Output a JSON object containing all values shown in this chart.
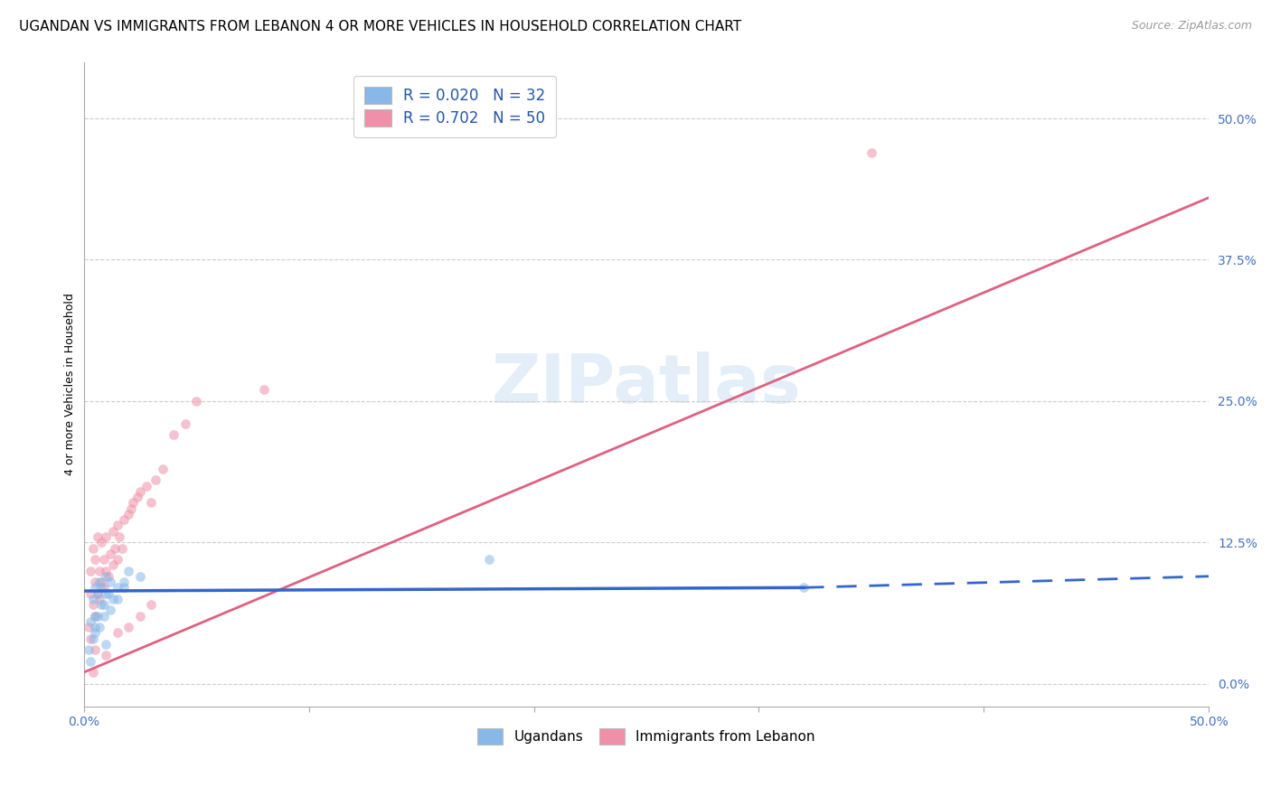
{
  "title": "UGANDAN VS IMMIGRANTS FROM LEBANON 4 OR MORE VEHICLES IN HOUSEHOLD CORRELATION CHART",
  "source": "Source: ZipAtlas.com",
  "ylabel": "4 or more Vehicles in Household",
  "xlim": [
    0.0,
    50.0
  ],
  "ylim": [
    -2.0,
    55.0
  ],
  "yticks": [
    0,
    12.5,
    25.0,
    37.5,
    50.0
  ],
  "xticks": [
    0.0,
    10.0,
    20.0,
    30.0,
    40.0,
    50.0
  ],
  "legend_entries": [
    {
      "label": "R = 0.020   N = 32"
    },
    {
      "label": "R = 0.702   N = 50"
    }
  ],
  "legend_labels_bottom": [
    "Ugandans",
    "Immigrants from Lebanon"
  ],
  "blue_line_color": "#3366cc",
  "pink_line_color": "#e06080",
  "blue_scatter_color": "#88b8e8",
  "pink_scatter_color": "#f090a8",
  "blue_solid_end": 32.0,
  "ugandan_x": [
    0.2,
    0.3,
    0.4,
    0.5,
    0.5,
    0.6,
    0.7,
    0.8,
    0.9,
    1.0,
    1.1,
    1.2,
    1.3,
    1.5,
    1.8,
    2.0,
    2.5,
    0.3,
    0.4,
    0.5,
    0.6,
    0.8,
    1.0,
    1.2,
    1.5,
    1.8,
    0.7,
    0.9,
    18.0,
    0.5,
    32.0,
    1.0
  ],
  "ugandan_y": [
    3.0,
    5.5,
    7.5,
    8.5,
    6.0,
    8.0,
    9.0,
    8.5,
    7.0,
    9.5,
    8.0,
    9.0,
    7.5,
    8.5,
    9.0,
    10.0,
    9.5,
    2.0,
    4.0,
    5.0,
    6.0,
    7.0,
    8.0,
    6.5,
    7.5,
    8.5,
    5.0,
    6.0,
    11.0,
    4.5,
    8.5,
    3.5
  ],
  "lebanon_x": [
    0.2,
    0.3,
    0.3,
    0.4,
    0.4,
    0.5,
    0.5,
    0.5,
    0.6,
    0.6,
    0.7,
    0.7,
    0.8,
    0.8,
    0.9,
    0.9,
    1.0,
    1.0,
    1.1,
    1.2,
    1.3,
    1.3,
    1.4,
    1.5,
    1.5,
    1.6,
    1.7,
    1.8,
    2.0,
    2.1,
    2.2,
    2.4,
    2.5,
    2.8,
    3.0,
    3.2,
    3.5,
    4.0,
    4.5,
    5.0,
    0.3,
    0.5,
    1.0,
    1.5,
    2.0,
    2.5,
    3.0,
    8.0,
    0.4,
    35.0
  ],
  "lebanon_y": [
    5.0,
    8.0,
    10.0,
    7.0,
    12.0,
    6.0,
    9.0,
    11.0,
    8.0,
    13.0,
    7.5,
    10.0,
    9.0,
    12.5,
    8.5,
    11.0,
    10.0,
    13.0,
    9.5,
    11.5,
    10.5,
    13.5,
    12.0,
    11.0,
    14.0,
    13.0,
    12.0,
    14.5,
    15.0,
    15.5,
    16.0,
    16.5,
    17.0,
    17.5,
    16.0,
    18.0,
    19.0,
    22.0,
    23.0,
    25.0,
    4.0,
    3.0,
    2.5,
    4.5,
    5.0,
    6.0,
    7.0,
    26.0,
    1.0,
    47.0
  ],
  "background_color": "#ffffff",
  "grid_color": "#cccccc",
  "title_fontsize": 11,
  "label_fontsize": 9,
  "tick_fontsize": 10,
  "source_fontsize": 9,
  "marker_size": 60,
  "marker_alpha": 0.55
}
